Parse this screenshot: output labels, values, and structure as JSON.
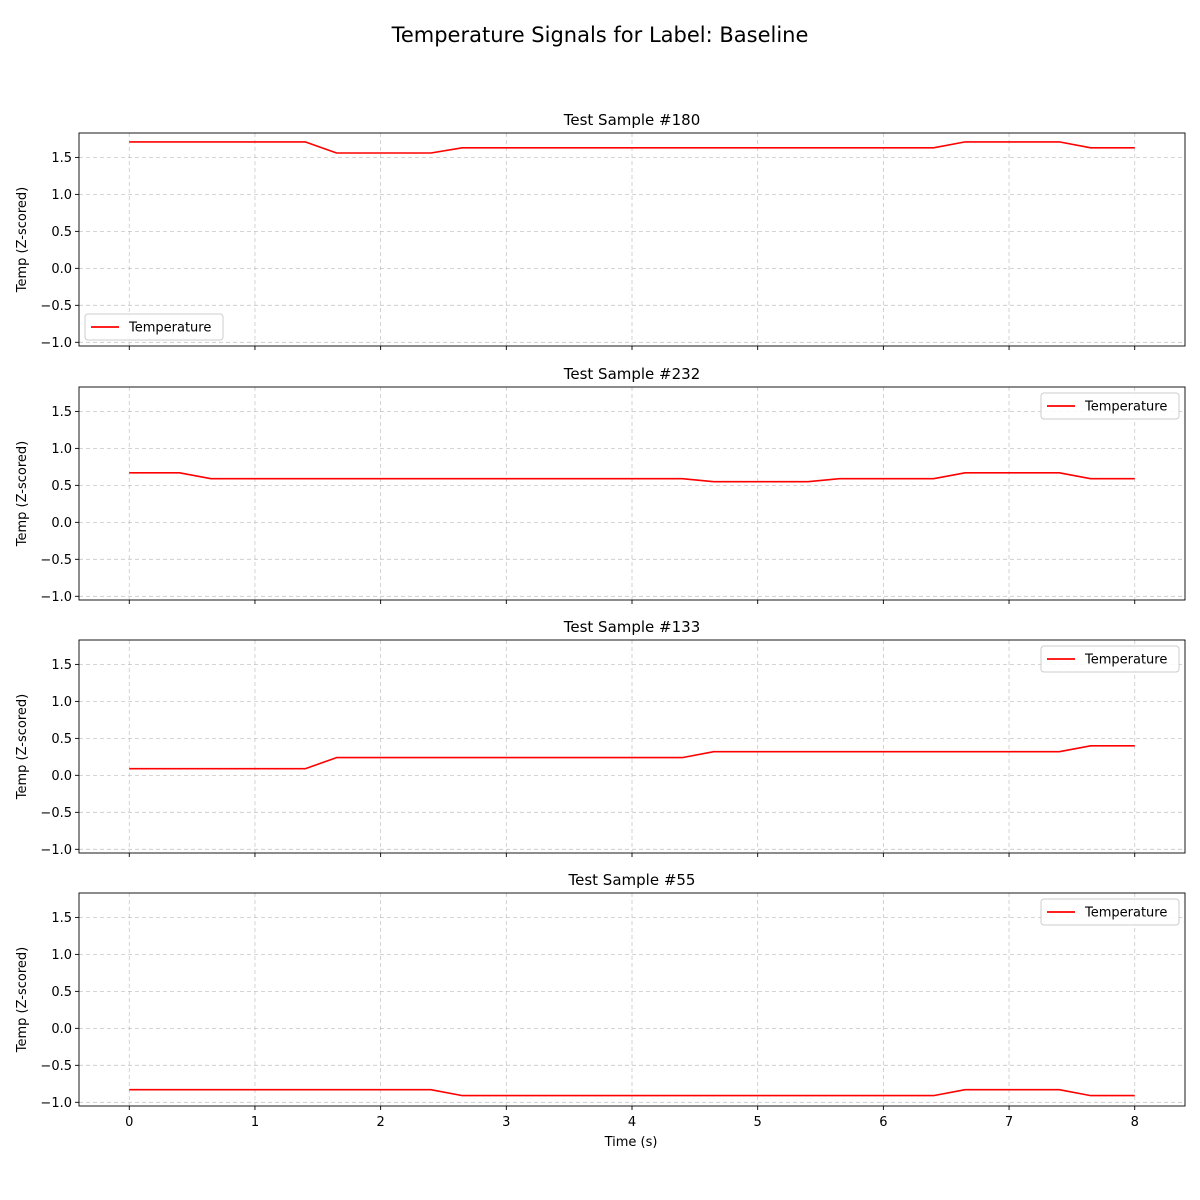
{
  "figure": {
    "title": "Temperature Signals for Label: Baseline",
    "xlabel": "Time (s)"
  },
  "colors": {
    "series": "#ff0000",
    "grid": "#b0b0b0",
    "axes": "#000000",
    "legend_border": "#cccccc"
  },
  "chart_data": [
    {
      "type": "line",
      "title": "Test Sample #180",
      "ylabel": "Temp (Z-scored)",
      "xlim": [
        -0.4,
        8.4
      ],
      "ylim": [
        -1.05,
        1.83
      ],
      "x_ticks": [
        "0",
        "1",
        "2",
        "3",
        "4",
        "5",
        "6",
        "7",
        "8"
      ],
      "y_ticks": [
        "1.5",
        "1.0",
        "0.5",
        "0.0",
        "−0.5",
        "−1.0"
      ],
      "grid": true,
      "legend_position": "lower-left",
      "series": [
        {
          "name": "Temperature",
          "color": "#ff0000",
          "x": [
            0,
            0.4,
            1.4,
            1.65,
            2.4,
            2.65,
            6.4,
            6.65,
            7.4,
            7.65,
            8.0
          ],
          "y": [
            1.71,
            1.71,
            1.71,
            1.56,
            1.56,
            1.63,
            1.63,
            1.71,
            1.71,
            1.63,
            1.63
          ]
        }
      ]
    },
    {
      "type": "line",
      "title": "Test Sample #232",
      "ylabel": "Temp (Z-scored)",
      "xlim": [
        -0.4,
        8.4
      ],
      "ylim": [
        -1.05,
        1.83
      ],
      "x_ticks": [
        "0",
        "1",
        "2",
        "3",
        "4",
        "5",
        "6",
        "7",
        "8"
      ],
      "y_ticks": [
        "1.5",
        "1.0",
        "0.5",
        "0.0",
        "−0.5",
        "−1.0"
      ],
      "grid": true,
      "legend_position": "upper-right",
      "series": [
        {
          "name": "Temperature",
          "color": "#ff0000",
          "x": [
            0,
            0.4,
            0.65,
            4.4,
            4.65,
            5.4,
            5.65,
            6.4,
            6.65,
            7.4,
            7.65,
            8.0
          ],
          "y": [
            0.67,
            0.67,
            0.59,
            0.59,
            0.55,
            0.55,
            0.59,
            0.59,
            0.67,
            0.67,
            0.59,
            0.59
          ]
        }
      ]
    },
    {
      "type": "line",
      "title": "Test Sample #133",
      "ylabel": "Temp (Z-scored)",
      "xlim": [
        -0.4,
        8.4
      ],
      "ylim": [
        -1.05,
        1.83
      ],
      "x_ticks": [
        "0",
        "1",
        "2",
        "3",
        "4",
        "5",
        "6",
        "7",
        "8"
      ],
      "y_ticks": [
        "1.5",
        "1.0",
        "0.5",
        "0.0",
        "−0.5",
        "−1.0"
      ],
      "grid": true,
      "legend_position": "upper-right",
      "series": [
        {
          "name": "Temperature",
          "color": "#ff0000",
          "x": [
            0,
            1.4,
            1.65,
            4.4,
            4.65,
            7.4,
            7.65,
            8.0
          ],
          "y": [
            0.09,
            0.09,
            0.24,
            0.24,
            0.32,
            0.32,
            0.4,
            0.4
          ]
        }
      ]
    },
    {
      "type": "line",
      "title": "Test Sample #55",
      "ylabel": "Temp (Z-scored)",
      "xlim": [
        -0.4,
        8.4
      ],
      "ylim": [
        -1.05,
        1.83
      ],
      "x_ticks": [
        "0",
        "1",
        "2",
        "3",
        "4",
        "5",
        "6",
        "7",
        "8"
      ],
      "y_ticks": [
        "1.5",
        "1.0",
        "0.5",
        "0.0",
        "−0.5",
        "−1.0"
      ],
      "grid": true,
      "legend_position": "upper-right",
      "series": [
        {
          "name": "Temperature",
          "color": "#ff0000",
          "x": [
            0,
            2.4,
            2.65,
            6.4,
            6.65,
            7.4,
            7.65,
            8.0
          ],
          "y": [
            -0.83,
            -0.83,
            -0.91,
            -0.91,
            -0.83,
            -0.83,
            -0.91,
            -0.91
          ]
        }
      ]
    }
  ]
}
